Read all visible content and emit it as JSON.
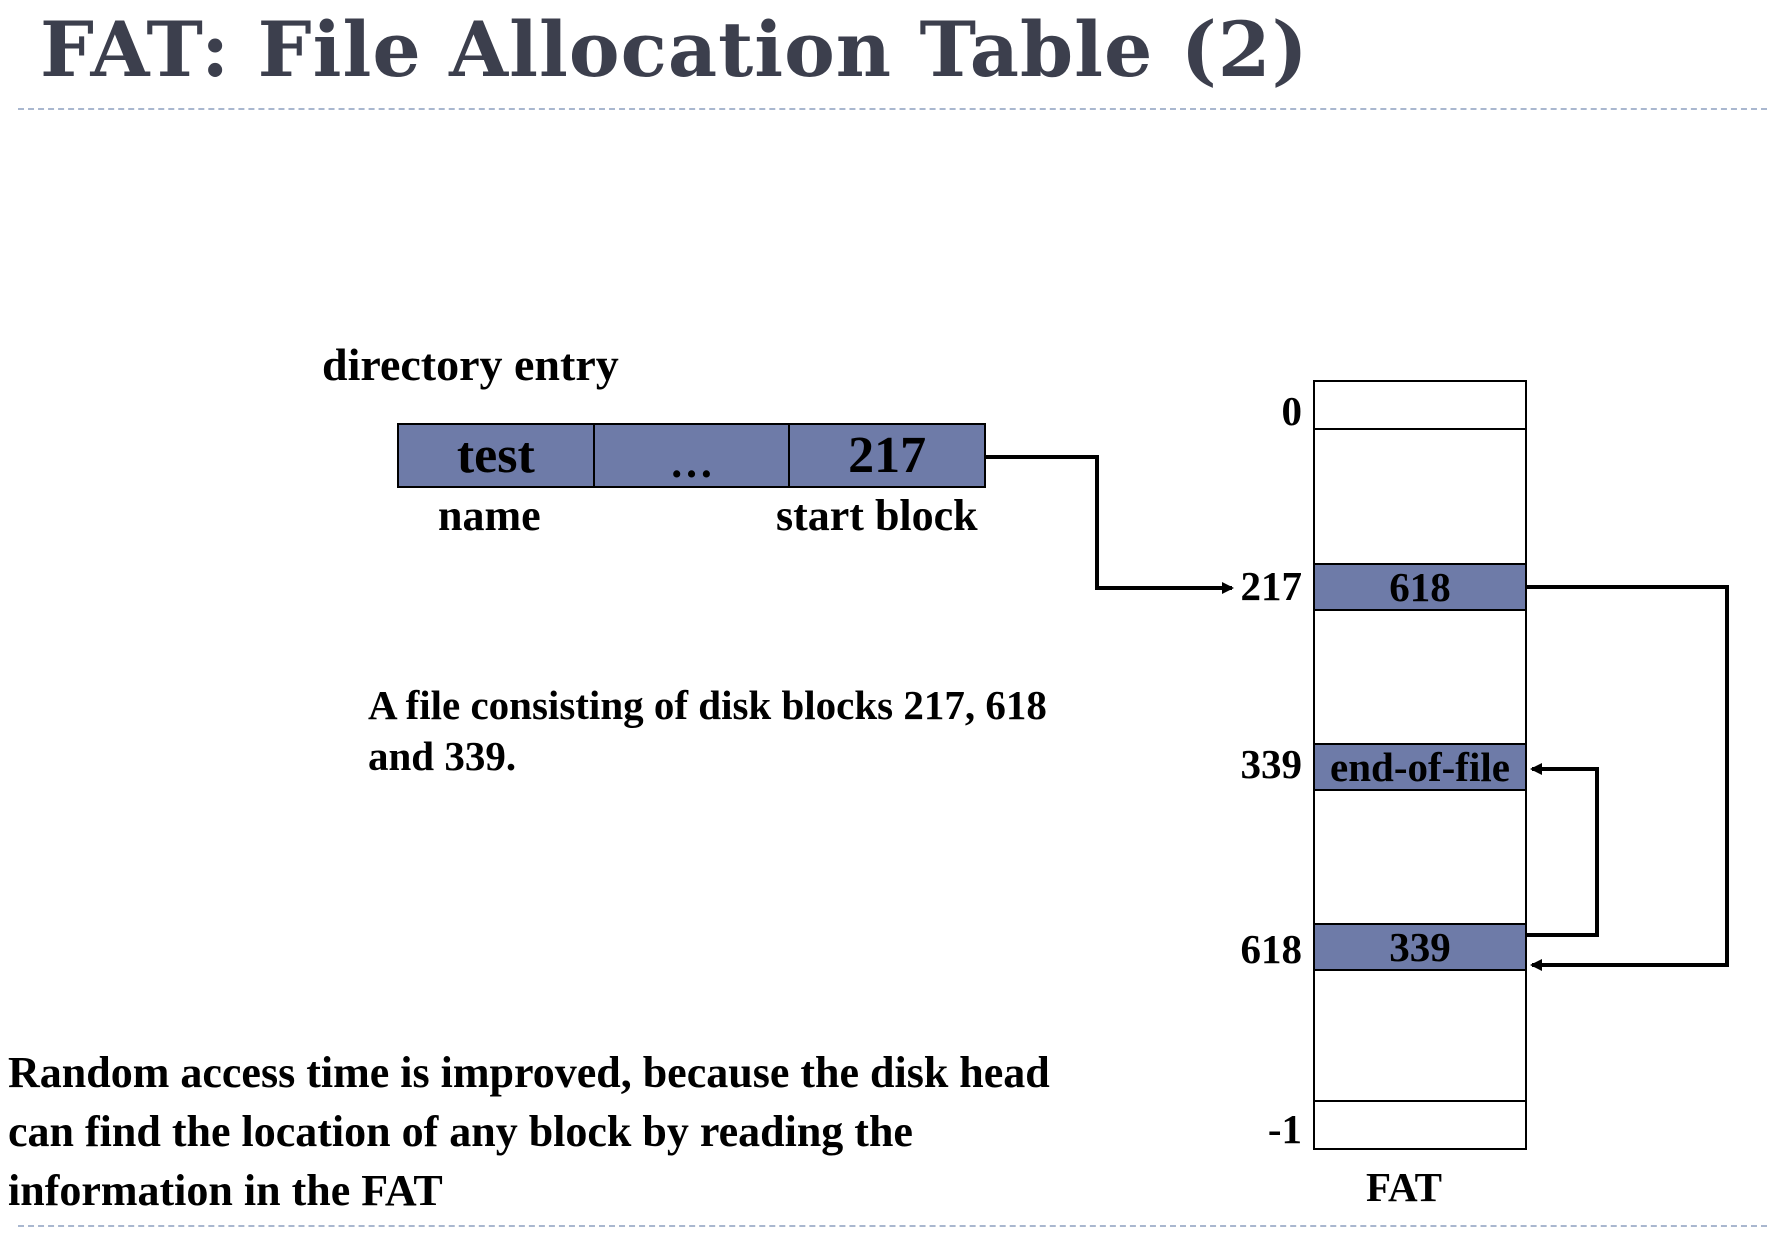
{
  "slide": {
    "title": "FAT: File Allocation Table (2)"
  },
  "directory": {
    "label": "directory entry",
    "cells": [
      "test",
      "…",
      "217"
    ],
    "name_label": "name",
    "start_label": "start block"
  },
  "description": {
    "line1": "A file consisting of disk blocks 217, 618",
    "line2": "and 339."
  },
  "note": {
    "line1": "Random access time is improved, because the disk head",
    "line2": "can find the location of any block by reading the",
    "line3": "information in the FAT"
  },
  "fat": {
    "label": "FAT",
    "indices": [
      "0",
      "217",
      "339",
      "618",
      "-1"
    ],
    "entries": {
      "e217": "618",
      "e339": "end-of-file",
      "e618": "339"
    }
  },
  "colors": {
    "filled_cell": "#6e7ba8",
    "title": "#3c3f4d",
    "rule": "#a9b7cf"
  }
}
